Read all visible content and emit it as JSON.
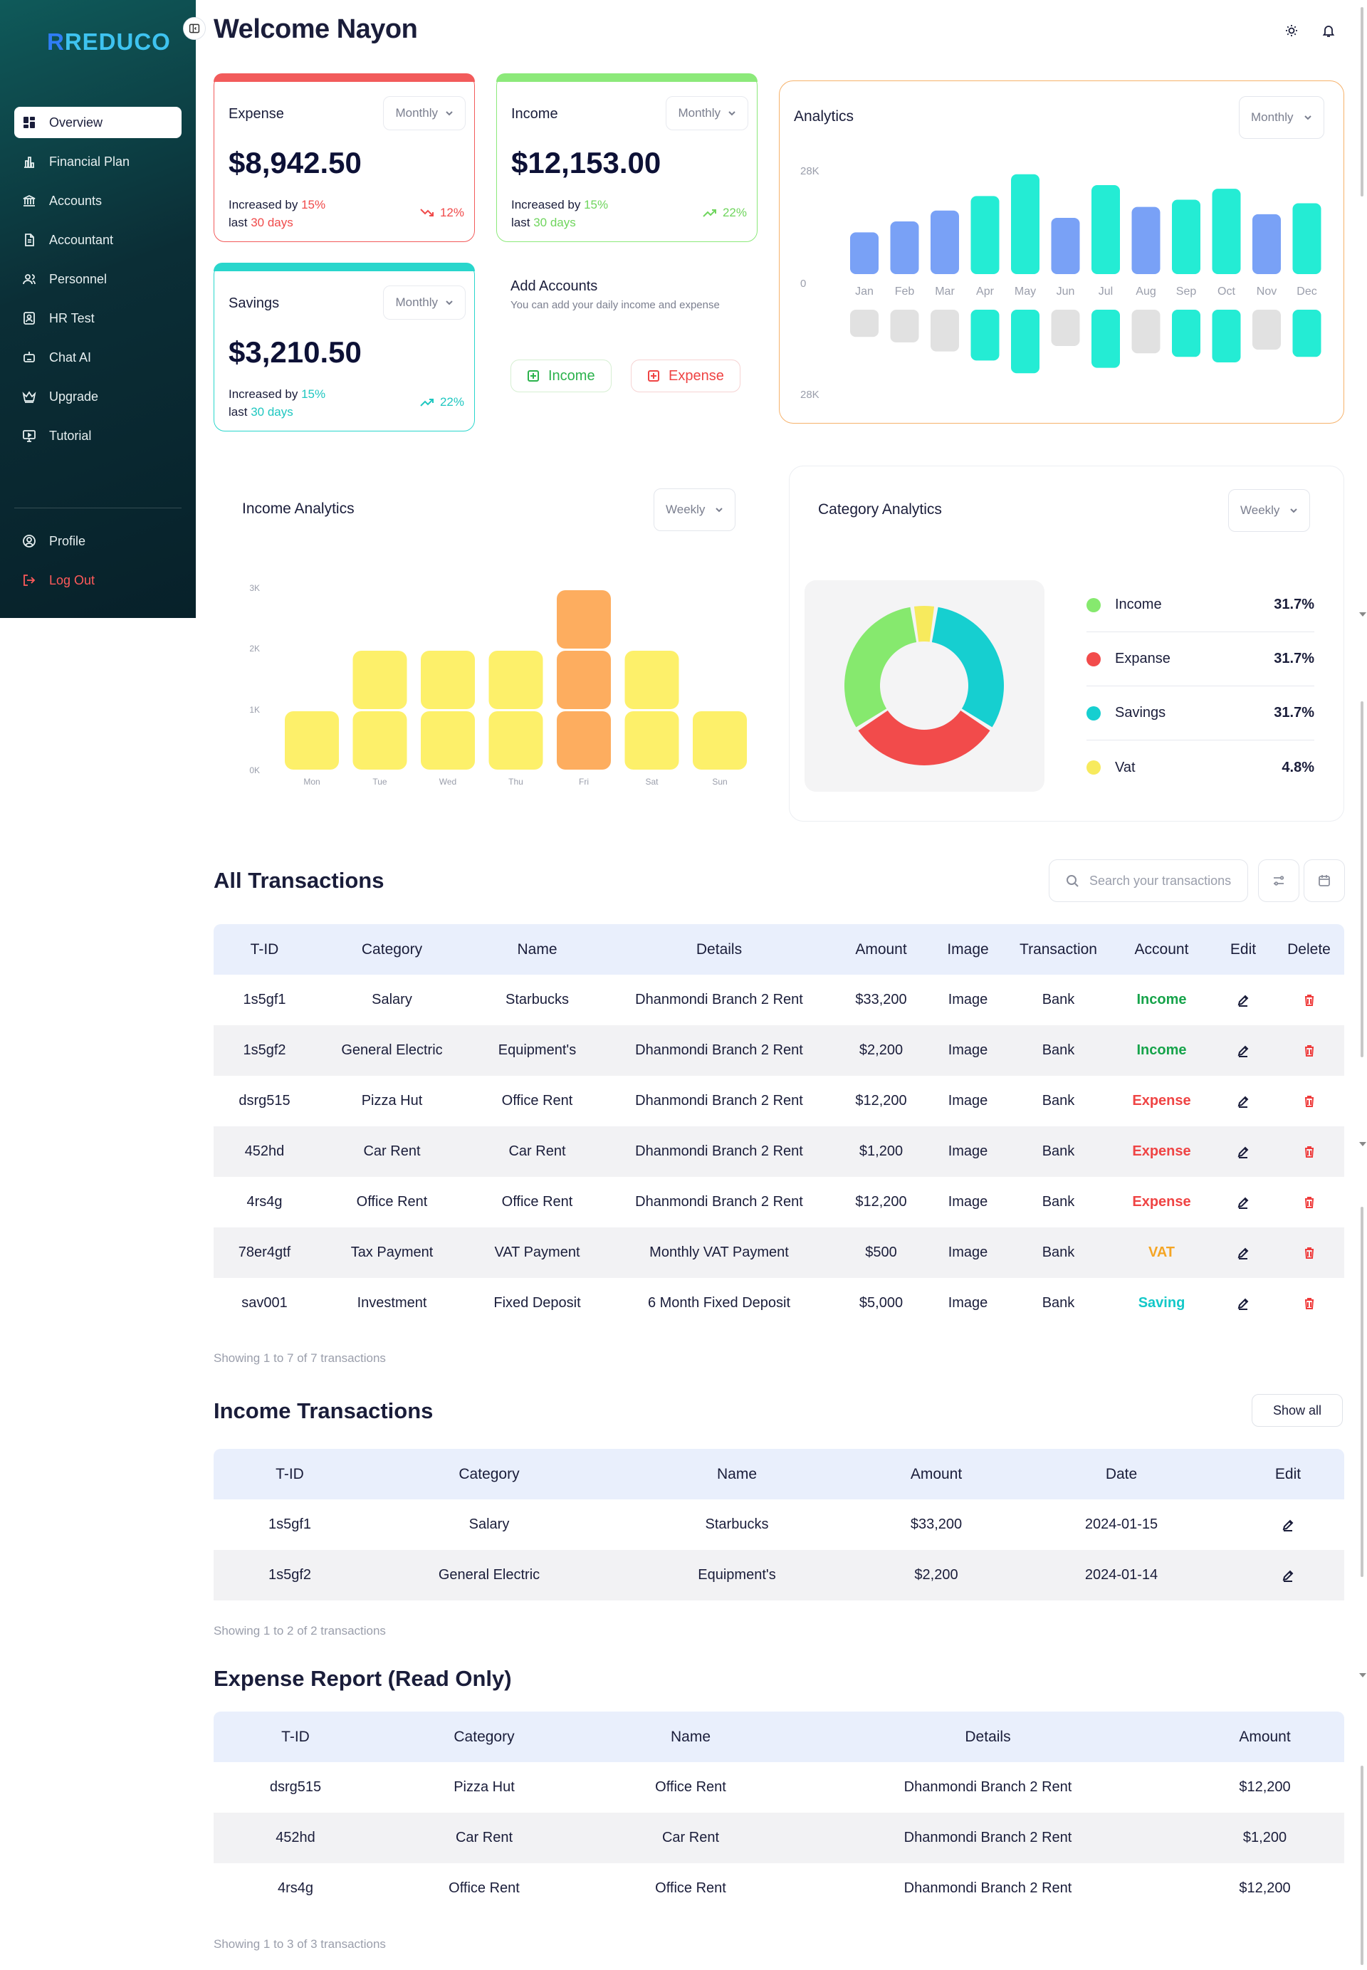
{
  "sidebar": {
    "logo_prefix": "R",
    "logo_text": "REDUCO",
    "items": [
      {
        "label": "Overview",
        "icon": "grid-icon",
        "active": true
      },
      {
        "label": "Financial Plan",
        "icon": "chart-icon"
      },
      {
        "label": "Accounts",
        "icon": "bank-icon"
      },
      {
        "label": "Accountant",
        "icon": "document-icon"
      },
      {
        "label": "Personnel",
        "icon": "users-icon"
      },
      {
        "label": "HR Test",
        "icon": "id-badge-icon"
      },
      {
        "label": "Chat AI",
        "icon": "robot-icon"
      },
      {
        "label": "Upgrade",
        "icon": "crown-icon"
      },
      {
        "label": "Tutorial",
        "icon": "monitor-icon"
      }
    ],
    "bottom": [
      {
        "label": "Profile",
        "icon": "user-circle-icon"
      },
      {
        "label": "Log Out",
        "icon": "logout-icon"
      }
    ]
  },
  "header": {
    "title": "Welcome Nayon"
  },
  "cards": {
    "expense": {
      "title": "Expense",
      "period": "Monthly",
      "amount": "$8,942.50",
      "note1": "Increased by ",
      "pct": "15%",
      "note2": "last ",
      "days": "30 days",
      "trend": "12%",
      "color": "#f04a4a"
    },
    "income": {
      "title": "Income",
      "period": "Monthly",
      "amount": "$12,153.00",
      "note1": "Increased by ",
      "pct": "15%",
      "note2": "last ",
      "days": "30 days",
      "trend": "22%",
      "color": "#7ee36f"
    },
    "savings": {
      "title": "Savings",
      "period": "Monthly",
      "amount": "$3,210.50",
      "note1": "Increased by ",
      "pct": "15%",
      "note2": "last ",
      "days": "30 days",
      "trend": "22%",
      "color": "#1fd3c9"
    }
  },
  "add_accounts": {
    "title": "Add Accounts",
    "subtitle": "You can add your daily income and expense",
    "income_label": "Income",
    "expense_label": "Expense"
  },
  "analytics": {
    "title": "Analytics",
    "period": "Monthly",
    "y_top": "28K",
    "y_zero": "0",
    "y_bottom": "28K"
  },
  "income_analytics": {
    "title": "Income Analytics",
    "period": "Weekly",
    "y_ticks": [
      "3K",
      "2K",
      "1K",
      "0K"
    ]
  },
  "category_analytics": {
    "title": "Category Analytics",
    "period": "Weekly",
    "legend": [
      {
        "label": "Income",
        "pct": "31.7%",
        "color": "#86e96e"
      },
      {
        "label": "Expanse",
        "pct": "31.7%",
        "color": "#f24b4b"
      },
      {
        "label": "Savings",
        "pct": "31.7%",
        "color": "#16cfd0"
      },
      {
        "label": "Vat",
        "pct": "4.8%",
        "color": "#f7ea5d"
      }
    ]
  },
  "chart_data": [
    {
      "type": "bar",
      "title": "Analytics",
      "categories": [
        "Jan",
        "Feb",
        "Mar",
        "Apr",
        "May",
        "Jun",
        "Jul",
        "Aug",
        "Sep",
        "Oct",
        "Nov",
        "Dec"
      ],
      "series": [
        {
          "values": [
            11.5,
            14.5,
            17.5,
            21.5,
            27.5,
            15.5,
            24.5,
            18.5,
            20.5,
            23.5,
            16.5,
            19.5
          ]
        },
        {
          "values": [
            -7.5,
            -9,
            -11.5,
            -14,
            -17.5,
            -10,
            -16,
            -12,
            -13,
            -14.5,
            -11,
            -13
          ]
        }
      ],
      "top_colors": [
        "#79a1f6",
        "#79a1f6",
        "#79a1f6",
        "#24ecd4",
        "#24ecd4",
        "#79a1f6",
        "#24ecd4",
        "#79a1f6",
        "#24ecd4",
        "#24ecd4",
        "#79a1f6",
        "#24ecd4"
      ],
      "bottom_colors": [
        "#e1e1e1",
        "#e1e1e1",
        "#e1e1e1",
        "#24ecd4",
        "#24ecd4",
        "#e1e1e1",
        "#24ecd4",
        "#e1e1e1",
        "#24ecd4",
        "#24ecd4",
        "#e1e1e1",
        "#24ecd4"
      ],
      "ylim": [
        -28,
        28
      ],
      "grid": false
    },
    {
      "type": "bar",
      "title": "Income Analytics",
      "categories": [
        "Mon",
        "Tue",
        "Wed",
        "Thu",
        "Fri",
        "Sat",
        "Sun"
      ],
      "values": [
        1000,
        2000,
        2000,
        2000,
        3000,
        2000,
        1000
      ],
      "highlight": "Fri",
      "colors": {
        "normal": "#fdf06a",
        "highlight": "#fdad5f"
      },
      "ylim": [
        0,
        3000
      ],
      "grid": false
    },
    {
      "type": "pie",
      "title": "Category Analytics",
      "labels": [
        "Income",
        "Expanse",
        "Savings",
        "Vat"
      ],
      "values": [
        31.7,
        31.7,
        31.7,
        4.8
      ],
      "colors": [
        "#86e96e",
        "#f24b4b",
        "#16cfd0",
        "#f7ea5d"
      ]
    }
  ],
  "all_transactions": {
    "title": "All Transactions",
    "search_placeholder": "Search your transactions",
    "columns": [
      "T-ID",
      "Category",
      "Name",
      "Details",
      "Amount",
      "Image",
      "Transaction",
      "Account",
      "Edit",
      "Delete"
    ],
    "rows": [
      {
        "tid": "1s5gf1",
        "category": "Salary",
        "name": "Starbucks",
        "details": "Dhanmondi Branch 2 Rent",
        "amount": "$33,200",
        "image": "Image",
        "transaction": "Bank",
        "account": "Income",
        "account_color": "#16a34a"
      },
      {
        "tid": "1s5gf2",
        "category": "General Electric",
        "name": "Equipment's",
        "details": "Dhanmondi Branch 2 Rent",
        "amount": "$2,200",
        "image": "Image",
        "transaction": "Bank",
        "account": "Income",
        "account_color": "#16a34a"
      },
      {
        "tid": "dsrg515",
        "category": "Pizza Hut",
        "name": "Office Rent",
        "details": "Dhanmondi Branch 2 Rent",
        "amount": "$12,200",
        "image": "Image",
        "transaction": "Bank",
        "account": "Expense",
        "account_color": "#ef4444"
      },
      {
        "tid": "452hd",
        "category": "Car Rent",
        "name": "Car Rent",
        "details": "Dhanmondi Branch 2 Rent",
        "amount": "$1,200",
        "image": "Image",
        "transaction": "Bank",
        "account": "Expense",
        "account_color": "#ef4444"
      },
      {
        "tid": "4rs4g",
        "category": "Office Rent",
        "name": "Office Rent",
        "details": "Dhanmondi Branch 2 Rent",
        "amount": "$12,200",
        "image": "Image",
        "transaction": "Bank",
        "account": "Expense",
        "account_color": "#ef4444"
      },
      {
        "tid": "78er4gtf",
        "category": "Tax Payment",
        "name": "VAT Payment",
        "details": "Monthly VAT Payment",
        "amount": "$500",
        "image": "Image",
        "transaction": "Bank",
        "account": "VAT",
        "account_color": "#f5a524"
      },
      {
        "tid": "sav001",
        "category": "Investment",
        "name": "Fixed Deposit",
        "details": "6 Month Fixed Deposit",
        "amount": "$5,000",
        "image": "Image",
        "transaction": "Bank",
        "account": "Saving",
        "account_color": "#14c8c8"
      }
    ],
    "showing": "Showing 1 to 7 of 7 transactions"
  },
  "income_transactions": {
    "title": "Income Transactions",
    "show_all": "Show all",
    "columns": [
      "T-ID",
      "Category",
      "Name",
      "Amount",
      "Date",
      "Edit"
    ],
    "rows": [
      {
        "tid": "1s5gf1",
        "category": "Salary",
        "name": "Starbucks",
        "amount": "$33,200",
        "date": "2024-01-15"
      },
      {
        "tid": "1s5gf2",
        "category": "General Electric",
        "name": "Equipment's",
        "amount": "$2,200",
        "date": "2024-01-14"
      }
    ],
    "showing": "Showing 1 to 2 of 2 transactions"
  },
  "expense_report": {
    "title": "Expense Report (Read Only)",
    "columns": [
      "T-ID",
      "Category",
      "Name",
      "Details",
      "Amount"
    ],
    "rows": [
      {
        "tid": "dsrg515",
        "category": "Pizza Hut",
        "name": "Office Rent",
        "details": "Dhanmondi Branch 2 Rent",
        "amount": "$12,200"
      },
      {
        "tid": "452hd",
        "category": "Car Rent",
        "name": "Car Rent",
        "details": "Dhanmondi Branch 2 Rent",
        "amount": "$1,200"
      },
      {
        "tid": "4rs4g",
        "category": "Office Rent",
        "name": "Office Rent",
        "details": "Dhanmondi Branch 2 Rent",
        "amount": "$12,200"
      }
    ],
    "showing": "Showing 1 to 3 of 3 transactions"
  }
}
